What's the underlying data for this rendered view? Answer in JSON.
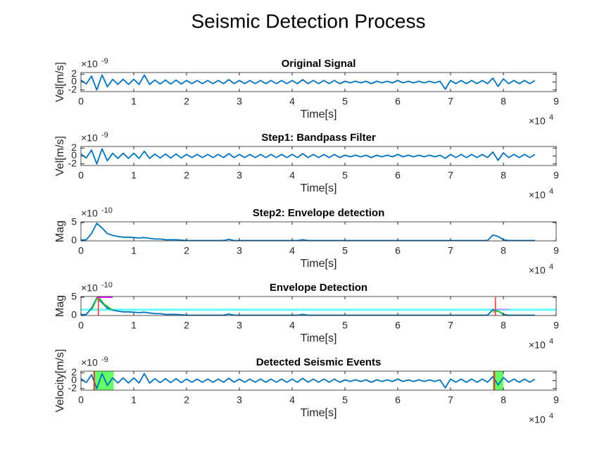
{
  "title": "Seismic Detection Process",
  "chart_data": [
    {
      "type": "line",
      "title": "Original Signal",
      "xlabel": "Time[s]",
      "ylabel": "Vel[m/s]",
      "exponent_base": "×10",
      "x_exponent": "4",
      "y_exponent": "-9",
      "xlim": [
        0,
        9
      ],
      "xticks": [
        0,
        1,
        2,
        3,
        4,
        5,
        6,
        7,
        8,
        9
      ],
      "ylim": [
        -2.4,
        2.4
      ],
      "yticks": [
        -2,
        0,
        2
      ],
      "x": [
        0,
        0.1,
        0.2,
        0.3,
        0.4,
        0.5,
        0.6,
        0.7,
        0.8,
        0.9,
        1,
        1.1,
        1.2,
        1.3,
        1.4,
        1.5,
        1.6,
        1.7,
        1.8,
        1.9,
        2,
        2.1,
        2.2,
        2.3,
        2.4,
        2.5,
        2.6,
        2.7,
        2.8,
        2.9,
        3,
        3.1,
        3.2,
        3.3,
        3.4,
        3.5,
        3.6,
        3.7,
        3.8,
        3.9,
        4,
        4.1,
        4.2,
        4.3,
        4.4,
        4.5,
        4.6,
        4.7,
        4.8,
        4.9,
        5,
        5.1,
        5.2,
        5.3,
        5.4,
        5.5,
        5.6,
        5.7,
        5.8,
        5.9,
        6,
        6.1,
        6.2,
        6.3,
        6.4,
        6.5,
        6.6,
        6.7,
        6.8,
        6.9,
        7,
        7.1,
        7.2,
        7.3,
        7.4,
        7.5,
        7.6,
        7.7,
        7.8,
        7.9,
        8,
        8.1,
        8.2,
        8.3,
        8.4,
        8.5,
        8.6
      ],
      "series": [
        {
          "color": "#0072bd",
          "values": [
            0.5,
            -0.5,
            1.5,
            -2.0,
            1.8,
            -1.2,
            0.7,
            -0.6,
            0.7,
            -0.6,
            0.7,
            -0.6,
            1.8,
            -0.6,
            0.5,
            -0.5,
            0.5,
            -0.5,
            0.5,
            -0.5,
            0.4,
            -0.4,
            0.4,
            -0.4,
            0.4,
            -0.4,
            0.4,
            -0.4,
            0.6,
            -0.4,
            0.4,
            -0.4,
            0.4,
            -0.4,
            0.4,
            -0.4,
            0.4,
            -0.4,
            0.4,
            -0.4,
            0.4,
            -0.4,
            0.6,
            -0.4,
            0.4,
            -0.4,
            0.4,
            -0.4,
            0.4,
            -0.4,
            0.2,
            -0.2,
            0.2,
            -0.2,
            0.2,
            -0.4,
            0.2,
            -0.2,
            0.2,
            -0.2,
            0.4,
            -0.2,
            0.2,
            -0.2,
            0.2,
            -0.2,
            0.2,
            -0.2,
            0.2,
            -1.8,
            0.4,
            -0.4,
            0.4,
            -0.4,
            0.4,
            -0.4,
            0.4,
            -0.4,
            1.0,
            -1.1,
            0.8,
            -0.4,
            0.4,
            -0.4,
            0.4,
            -0.4,
            0.4
          ]
        }
      ]
    },
    {
      "type": "line",
      "title": "Step1: Bandpass Filter",
      "xlabel": "Time[s]",
      "ylabel": "Vel[m/s]",
      "exponent_base": "×10",
      "x_exponent": "4",
      "y_exponent": "-9",
      "xlim": [
        0,
        9
      ],
      "xticks": [
        0,
        1,
        2,
        3,
        4,
        5,
        6,
        7,
        8,
        9
      ],
      "ylim": [
        -2.4,
        2.4
      ],
      "yticks": [
        -2,
        0,
        2
      ],
      "x": [
        0,
        0.1,
        0.2,
        0.3,
        0.4,
        0.5,
        0.6,
        0.7,
        0.8,
        0.9,
        1,
        1.1,
        1.2,
        1.3,
        1.4,
        1.5,
        1.6,
        1.7,
        1.8,
        1.9,
        2,
        2.1,
        2.2,
        2.3,
        2.4,
        2.5,
        2.6,
        2.7,
        2.8,
        2.9,
        3,
        3.1,
        3.2,
        3.3,
        3.4,
        3.5,
        3.6,
        3.7,
        3.8,
        3.9,
        4,
        4.1,
        4.2,
        4.3,
        4.4,
        4.5,
        4.6,
        4.7,
        4.8,
        4.9,
        5,
        5.1,
        5.2,
        5.3,
        5.4,
        5.5,
        5.6,
        5.7,
        5.8,
        5.9,
        6,
        6.1,
        6.2,
        6.3,
        6.4,
        6.5,
        6.6,
        6.7,
        6.8,
        6.9,
        7,
        7.1,
        7.2,
        7.3,
        7.4,
        7.5,
        7.6,
        7.7,
        7.8,
        7.9,
        8,
        8.1,
        8.2,
        8.3,
        8.4,
        8.5,
        8.6
      ],
      "series": [
        {
          "color": "#0072bd",
          "values": [
            0.5,
            -0.5,
            1.5,
            -2.0,
            1.8,
            -1.2,
            0.7,
            -0.6,
            0.7,
            -0.6,
            0.7,
            -0.6,
            1.2,
            -0.6,
            0.5,
            -0.5,
            0.5,
            -0.5,
            0.5,
            -0.5,
            0.4,
            -0.4,
            0.4,
            -0.4,
            0.4,
            -0.4,
            0.4,
            -0.4,
            0.6,
            -0.4,
            0.4,
            -0.4,
            0.4,
            -0.4,
            0.4,
            -0.4,
            0.4,
            -0.4,
            0.4,
            -0.4,
            0.4,
            -0.4,
            0.6,
            -0.4,
            0.4,
            -0.4,
            0.4,
            -0.4,
            0.4,
            -0.4,
            0.2,
            -0.2,
            0.2,
            -0.2,
            0.2,
            -0.4,
            0.2,
            -0.2,
            0.2,
            -0.2,
            0.4,
            -0.2,
            0.2,
            -0.2,
            0.2,
            -0.2,
            0.2,
            -0.2,
            0.2,
            -0.6,
            0.4,
            -0.4,
            0.4,
            -0.4,
            0.4,
            -0.4,
            0.4,
            -0.4,
            1.0,
            -1.1,
            0.8,
            -0.4,
            0.4,
            -0.4,
            0.4,
            -0.4,
            0.4
          ]
        }
      ]
    },
    {
      "type": "line",
      "title": "Step2: Envelope detection",
      "xlabel": "Time[s]",
      "ylabel": "Mag",
      "exponent_base": "×10",
      "x_exponent": "4",
      "y_exponent": "-10",
      "xlim": [
        0,
        9
      ],
      "xticks": [
        0,
        1,
        2,
        3,
        4,
        5,
        6,
        7,
        8,
        9
      ],
      "ylim": [
        0,
        5.2
      ],
      "yticks": [
        0,
        5
      ],
      "x": [
        0,
        0.1,
        0.2,
        0.3,
        0.4,
        0.5,
        0.6,
        0.7,
        0.8,
        0.9,
        1,
        1.1,
        1.2,
        1.3,
        1.4,
        1.5,
        1.6,
        1.7,
        1.8,
        1.9,
        2,
        2.1,
        2.2,
        2.3,
        2.4,
        2.5,
        2.6,
        2.7,
        2.8,
        2.9,
        3,
        3.1,
        3.2,
        3.3,
        3.4,
        3.5,
        3.6,
        3.7,
        3.8,
        3.9,
        4,
        4.1,
        4.2,
        4.3,
        4.4,
        4.5,
        4.6,
        4.7,
        4.8,
        4.9,
        5,
        5.1,
        5.2,
        5.3,
        5.4,
        5.5,
        5.6,
        5.7,
        5.8,
        5.9,
        6,
        6.1,
        6.2,
        6.3,
        6.4,
        6.5,
        6.6,
        6.7,
        6.8,
        6.9,
        7,
        7.1,
        7.2,
        7.3,
        7.4,
        7.5,
        7.6,
        7.7,
        7.8,
        7.9,
        8,
        8.1,
        8.2,
        8.3,
        8.4,
        8.5,
        8.6
      ],
      "series": [
        {
          "color": "#0072bd",
          "values": [
            0.2,
            0.3,
            2.0,
            4.8,
            3.5,
            2.0,
            1.5,
            1.2,
            1.0,
            1.0,
            0.9,
            0.8,
            0.9,
            0.7,
            0.5,
            0.5,
            0.3,
            0.3,
            0.3,
            0.2,
            0.1,
            0.1,
            0.1,
            0.1,
            0.1,
            0.1,
            0.1,
            0.1,
            0.4,
            0.1,
            0.1,
            0.1,
            0.1,
            0.1,
            0.1,
            0.1,
            0.1,
            0.1,
            0.1,
            0.1,
            0.1,
            0.1,
            0.3,
            0.1,
            0.1,
            0.1,
            0.1,
            0.1,
            0.1,
            0.1,
            0.1,
            0.1,
            0.1,
            0.1,
            0.1,
            0.1,
            0.1,
            0.1,
            0.1,
            0.1,
            0.1,
            0.1,
            0.1,
            0.1,
            0.1,
            0.1,
            0.1,
            0.1,
            0.1,
            0.1,
            0.1,
            0.1,
            0.1,
            0.1,
            0.1,
            0.1,
            0.1,
            0.1,
            1.6,
            1.2,
            0.3,
            0.1,
            0.1,
            0.1,
            0.1,
            0.1,
            0.1
          ]
        }
      ]
    },
    {
      "type": "line",
      "title": "Envelope Detection",
      "xlabel": "Time[s]",
      "ylabel": "Mag",
      "exponent_base": "×10",
      "x_exponent": "4",
      "y_exponent": "-10",
      "xlim": [
        0,
        9
      ],
      "xticks": [
        0,
        1,
        2,
        3,
        4,
        5,
        6,
        7,
        8,
        9
      ],
      "ylim": [
        0,
        5.2
      ],
      "yticks": [
        0,
        5
      ],
      "x": [
        0,
        0.1,
        0.2,
        0.3,
        0.4,
        0.5,
        0.6,
        0.7,
        0.8,
        0.9,
        1,
        1.1,
        1.2,
        1.3,
        1.4,
        1.5,
        1.6,
        1.7,
        1.8,
        1.9,
        2,
        2.1,
        2.2,
        2.3,
        2.4,
        2.5,
        2.6,
        2.7,
        2.8,
        2.9,
        3,
        3.1,
        3.2,
        3.3,
        3.4,
        3.5,
        3.6,
        3.7,
        3.8,
        3.9,
        4,
        4.1,
        4.2,
        4.3,
        4.4,
        4.5,
        4.6,
        4.7,
        4.8,
        4.9,
        5,
        5.1,
        5.2,
        5.3,
        5.4,
        5.5,
        5.6,
        5.7,
        5.8,
        5.9,
        6,
        6.1,
        6.2,
        6.3,
        6.4,
        6.5,
        6.6,
        6.7,
        6.8,
        6.9,
        7,
        7.1,
        7.2,
        7.3,
        7.4,
        7.5,
        7.6,
        7.7,
        7.8,
        7.9,
        8,
        8.1,
        8.2,
        8.3,
        8.4,
        8.5,
        8.6
      ],
      "series": [
        {
          "color": "#66ffff",
          "x": [
            0,
            9
          ],
          "values": [
            1.6,
            1.6
          ]
        },
        {
          "color": "#0072bd",
          "values": [
            0.2,
            0.3,
            2.0,
            4.8,
            3.5,
            2.0,
            1.5,
            1.2,
            1.0,
            1.0,
            0.9,
            0.8,
            0.9,
            0.7,
            0.5,
            0.5,
            0.3,
            0.3,
            0.3,
            0.2,
            0.1,
            0.1,
            0.1,
            0.1,
            0.1,
            0.1,
            0.1,
            0.1,
            0.4,
            0.1,
            0.1,
            0.1,
            0.1,
            0.1,
            0.1,
            0.1,
            0.1,
            0.1,
            0.1,
            0.1,
            0.1,
            0.1,
            0.3,
            0.1,
            0.1,
            0.1,
            0.1,
            0.1,
            0.1,
            0.1,
            0.1,
            0.1,
            0.1,
            0.1,
            0.1,
            0.1,
            0.1,
            0.1,
            0.1,
            0.1,
            0.1,
            0.1,
            0.1,
            0.1,
            0.1,
            0.1,
            0.1,
            0.1,
            0.1,
            0.1,
            0.1,
            0.1,
            0.1,
            0.1,
            0.1,
            0.1,
            0.1,
            0.1,
            1.6,
            1.2,
            0.3,
            0.1,
            0.1,
            0.1,
            0.1,
            0.1,
            0.1
          ]
        },
        {
          "color": "#33cc33",
          "x": [
            0.2,
            0.3,
            0.35,
            0.45,
            0.6,
            null,
            7.8,
            7.9,
            8.0
          ],
          "values": [
            1.5,
            4.5,
            4.8,
            3.0,
            1.5,
            null,
            1.0,
            1.2,
            0.5
          ]
        },
        {
          "color": "#ff00ff",
          "x": [
            0.3,
            0.6
          ],
          "values": [
            5,
            5
          ]
        },
        {
          "color": "#bb99ff",
          "x": [
            7.85,
            8.1
          ],
          "values": [
            1.7,
            1.7
          ]
        },
        {
          "color": "#ff4444",
          "x": [
            0.33,
            0.33,
            null,
            7.85,
            7.85
          ],
          "values": [
            0,
            5,
            null,
            0,
            5
          ]
        }
      ]
    },
    {
      "type": "line",
      "title": "Detected Seismic Events",
      "xlabel": "Time[s]",
      "ylabel": "Velocity[m/s]",
      "exponent_base": "×10",
      "x_exponent": "4",
      "y_exponent": "-9",
      "xlim": [
        0,
        9
      ],
      "xticks": [
        0,
        1,
        2,
        3,
        4,
        5,
        6,
        7,
        8,
        9
      ],
      "ylim": [
        -2.4,
        2.4
      ],
      "yticks": [
        -2,
        0,
        2
      ],
      "regions": [
        [
          0.25,
          0.62
        ],
        [
          7.8,
          8.0
        ]
      ],
      "region_color": "#66ff66",
      "picks": [
        0.25,
        7.83
      ],
      "pick_color": "#e83030",
      "x": [
        0,
        0.1,
        0.2,
        0.3,
        0.4,
        0.5,
        0.6,
        0.7,
        0.8,
        0.9,
        1,
        1.1,
        1.2,
        1.3,
        1.4,
        1.5,
        1.6,
        1.7,
        1.8,
        1.9,
        2,
        2.1,
        2.2,
        2.3,
        2.4,
        2.5,
        2.6,
        2.7,
        2.8,
        2.9,
        3,
        3.1,
        3.2,
        3.3,
        3.4,
        3.5,
        3.6,
        3.7,
        3.8,
        3.9,
        4,
        4.1,
        4.2,
        4.3,
        4.4,
        4.5,
        4.6,
        4.7,
        4.8,
        4.9,
        5,
        5.1,
        5.2,
        5.3,
        5.4,
        5.5,
        5.6,
        5.7,
        5.8,
        5.9,
        6,
        6.1,
        6.2,
        6.3,
        6.4,
        6.5,
        6.6,
        6.7,
        6.8,
        6.9,
        7,
        7.1,
        7.2,
        7.3,
        7.4,
        7.5,
        7.6,
        7.7,
        7.8,
        7.9,
        8,
        8.1,
        8.2,
        8.3,
        8.4,
        8.5,
        8.6
      ],
      "series": [
        {
          "color": "#0072bd",
          "values": [
            0.5,
            -0.5,
            1.5,
            -2.0,
            1.8,
            -1.2,
            0.7,
            -0.6,
            0.7,
            -0.6,
            0.7,
            -0.6,
            1.8,
            -0.6,
            0.5,
            -0.5,
            0.5,
            -0.5,
            0.5,
            -0.5,
            0.4,
            -0.4,
            0.4,
            -0.4,
            0.4,
            -0.4,
            0.4,
            -0.4,
            0.6,
            -0.4,
            0.4,
            -0.4,
            0.4,
            -0.4,
            0.4,
            -0.4,
            0.4,
            -0.4,
            0.4,
            -0.4,
            0.4,
            -0.4,
            0.6,
            -0.4,
            0.4,
            -0.4,
            0.4,
            -0.4,
            0.4,
            -0.4,
            0.2,
            -0.2,
            0.2,
            -0.2,
            0.2,
            -0.4,
            0.2,
            -0.2,
            0.2,
            -0.2,
            0.4,
            -0.2,
            0.2,
            -0.2,
            0.2,
            -0.2,
            0.2,
            -0.2,
            0.2,
            -1.8,
            0.4,
            -0.4,
            0.4,
            -0.4,
            0.4,
            -0.4,
            0.4,
            -0.4,
            1.0,
            -1.1,
            0.8,
            -0.4,
            0.4,
            -0.4,
            0.4,
            -0.4,
            0.4
          ]
        }
      ]
    }
  ]
}
